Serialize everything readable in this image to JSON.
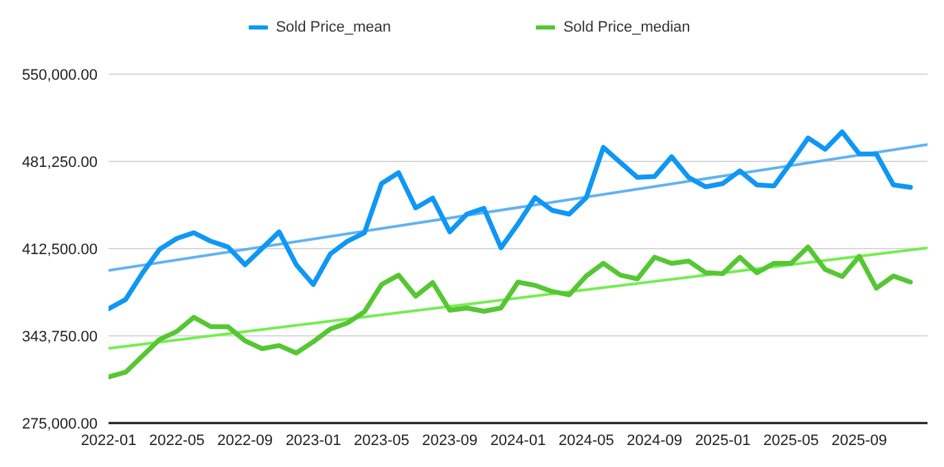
{
  "chart_data": {
    "type": "line",
    "legend": "top",
    "grid": "y",
    "marker": "none",
    "line_style": "solid",
    "x": [
      "2022-01",
      "2022-02",
      "2022-03",
      "2022-04",
      "2022-05",
      "2022-06",
      "2022-07",
      "2022-08",
      "2022-09",
      "2022-10",
      "2022-11",
      "2022-12",
      "2023-01",
      "2023-02",
      "2023-03",
      "2023-04",
      "2023-05",
      "2023-06",
      "2023-07",
      "2023-08",
      "2023-09",
      "2023-10",
      "2023-11",
      "2023-12",
      "2024-01",
      "2024-02",
      "2024-03",
      "2024-04",
      "2024-05",
      "2024-06",
      "2024-07",
      "2024-08",
      "2024-09",
      "2024-10",
      "2024-11",
      "2024-12",
      "2025-01",
      "2025-02",
      "2025-03",
      "2025-04",
      "2025-05",
      "2025-06",
      "2025-07",
      "2025-08",
      "2025-09",
      "2025-10",
      "2025-11",
      "2025-12"
    ],
    "xlim": [
      "2022-01",
      "2026-01"
    ],
    "xticks": [
      "2022-01",
      "2022-05",
      "2022-09",
      "2023-01",
      "2023-05",
      "2023-09",
      "2024-01",
      "2024-05",
      "2024-09",
      "2025-01",
      "2025-05",
      "2025-09"
    ],
    "ylim": [
      275000,
      550000
    ],
    "yticks": [
      {
        "value": 275000,
        "label": "275,000.00"
      },
      {
        "value": 343750,
        "label": "343,750.00"
      },
      {
        "value": 412500,
        "label": "412,500.00"
      },
      {
        "value": 481250,
        "label": "481,250.00"
      },
      {
        "value": 550000,
        "label": "550,000.00"
      }
    ],
    "series": [
      {
        "name": "Sold Price_mean",
        "color": "#0f97f5",
        "values": [
          365000,
          372400,
          393500,
          412000,
          420500,
          425000,
          418300,
          413800,
          399800,
          412700,
          425700,
          399800,
          384200,
          408300,
          418300,
          425000,
          463800,
          472300,
          444600,
          452300,
          425700,
          439700,
          444200,
          413100,
          432000,
          452700,
          442700,
          439700,
          452700,
          492300,
          480400,
          468600,
          469300,
          484900,
          468600,
          461200,
          463800,
          473800,
          462700,
          461900,
          480400,
          499700,
          490800,
          504500,
          487100,
          487100,
          462700,
          460800
        ]
      },
      {
        "name": "Sold Price_median",
        "color": "#55c733",
        "values": [
          311400,
          315100,
          328000,
          341000,
          347200,
          358400,
          350900,
          350900,
          339800,
          333600,
          336100,
          330200,
          339100,
          349100,
          353900,
          362800,
          384200,
          391600,
          375000,
          385700,
          363900,
          365700,
          363100,
          365700,
          386100,
          383500,
          378700,
          376100,
          390900,
          400900,
          391600,
          388700,
          405700,
          400900,
          402700,
          393500,
          392800,
          405700,
          393500,
          400900,
          400900,
          413800,
          396100,
          390500,
          406400,
          381300,
          390900,
          386100
        ]
      },
      {
        "type": "line",
        "color": "#62b2f2",
        "x": [
          "2022-01",
          "2026-01"
        ],
        "values": [
          395300,
          494500
        ]
      },
      {
        "type": "line",
        "color": "#74ee50",
        "x": [
          "2022-01",
          "2026-01"
        ],
        "values": [
          333900,
          413100
        ]
      }
    ]
  }
}
